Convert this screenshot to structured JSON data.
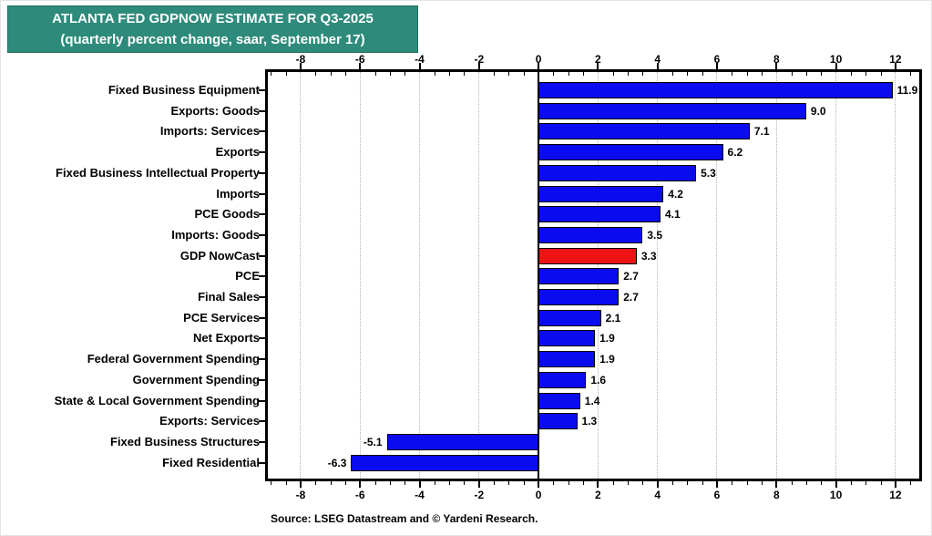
{
  "title": {
    "line1": "ATLANTA FED GDPNOW ESTIMATE FOR Q3-2025",
    "line2": "(quarterly percent change, saar, September 17)"
  },
  "source": "Source: LSEG Datastream and © Yardeni Research.",
  "colors": {
    "title_bg": "#2E8B7B",
    "title_text": "#FFFFFF",
    "bar_blue": "#0B0BEF",
    "bar_red": "#EE1414",
    "grid": "#B3B3B3",
    "axis": "#000000"
  },
  "chart_data": {
    "type": "bar",
    "orientation": "horizontal",
    "title": "ATLANTA FED GDPNOW ESTIMATE FOR Q3-2025",
    "subtitle": "(quarterly percent change, saar, September 17)",
    "xlabel": "",
    "ylabel": "",
    "xlim": [
      -9.1,
      12.8
    ],
    "x_ticks": [
      -8,
      -6,
      -4,
      -2,
      0,
      2,
      4,
      6,
      8,
      10,
      12
    ],
    "minor_tick_step": 0.5,
    "grid": "vertical dotted lines at major ticks",
    "zero_line": true,
    "legend": null,
    "highlight_category": "GDP NowCast",
    "bars": [
      {
        "category": "Fixed Business Equipment",
        "value": 11.9,
        "label": "11.9",
        "highlight": false
      },
      {
        "category": "Exports: Goods",
        "value": 9.0,
        "label": "9.0",
        "highlight": false
      },
      {
        "category": "Imports: Services",
        "value": 7.1,
        "label": "7.1",
        "highlight": false
      },
      {
        "category": "Exports",
        "value": 6.2,
        "label": "6.2",
        "highlight": false
      },
      {
        "category": "Fixed Business Intellectual Property",
        "value": 5.3,
        "label": "5.3",
        "highlight": false
      },
      {
        "category": "Imports",
        "value": 4.2,
        "label": "4.2",
        "highlight": false
      },
      {
        "category": "PCE Goods",
        "value": 4.1,
        "label": "4.1",
        "highlight": false
      },
      {
        "category": "Imports: Goods",
        "value": 3.5,
        "label": "3.5",
        "highlight": false
      },
      {
        "category": "GDP NowCast",
        "value": 3.3,
        "label": "3.3",
        "highlight": true
      },
      {
        "category": "PCE",
        "value": 2.7,
        "label": "2.7",
        "highlight": false
      },
      {
        "category": "Final Sales",
        "value": 2.7,
        "label": "2.7",
        "highlight": false
      },
      {
        "category": "PCE Services",
        "value": 2.1,
        "label": "2.1",
        "highlight": false
      },
      {
        "category": "Net Exports",
        "value": 1.9,
        "label": "1.9",
        "highlight": false
      },
      {
        "category": "Federal Government Spending",
        "value": 1.9,
        "label": "1.9",
        "highlight": false
      },
      {
        "category": "Government Spending",
        "value": 1.6,
        "label": "1.6",
        "highlight": false
      },
      {
        "category": "State & Local Government Spending",
        "value": 1.4,
        "label": "1.4",
        "highlight": false
      },
      {
        "category": "Exports: Services",
        "value": 1.3,
        "label": "1.3",
        "highlight": false
      },
      {
        "category": "Fixed Business Structures",
        "value": -5.1,
        "label": "-5.1",
        "highlight": false
      },
      {
        "category": "Fixed Residential",
        "value": -6.3,
        "label": "-6.3",
        "highlight": false
      }
    ]
  }
}
